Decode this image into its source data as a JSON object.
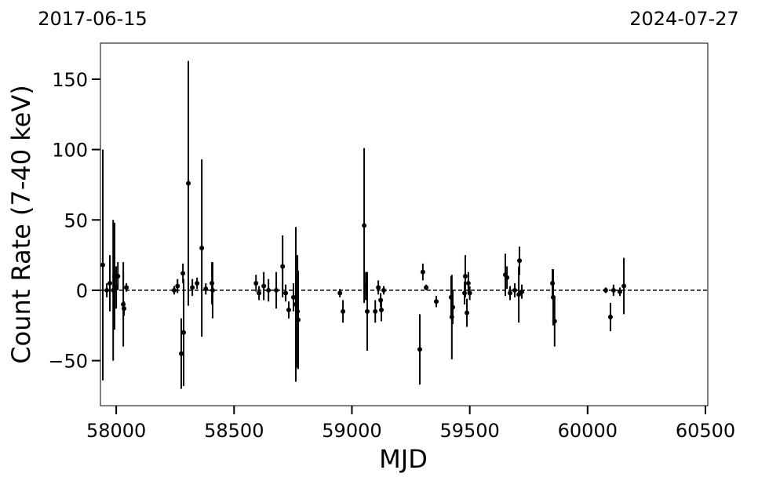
{
  "chart_data": {
    "type": "errorbar-scatter",
    "x_label": "MJD",
    "y_label": "Count Rate (7-40 keV)",
    "top_left_label": "2017-06-15",
    "top_right_label": "2024-07-27",
    "color": "#000000",
    "hline": 0,
    "xlim": [
      57933,
      60510
    ],
    "ylim": [
      -82,
      175.6
    ],
    "xticks": [
      58000,
      58500,
      59000,
      59500,
      60000,
      60500
    ],
    "yticks": [
      {
        "value": -50,
        "label": "−50"
      },
      0,
      50,
      100,
      150
    ],
    "x": [
      57943,
      57960,
      57973,
      57987,
      57993,
      58000,
      58007,
      58030,
      58033,
      58043,
      58246,
      58260,
      58276,
      58283,
      58286,
      58306,
      58323,
      58343,
      58363,
      58380,
      58406,
      58409,
      58593,
      58606,
      58626,
      58646,
      58679,
      58706,
      58719,
      58732,
      58752,
      58762,
      58769,
      58772,
      58949,
      58962,
      59052,
      59059,
      59065,
      59099,
      59112,
      59122,
      59125,
      59135,
      59288,
      59301,
      59315,
      59358,
      59421,
      59424,
      59428,
      59478,
      59481,
      59488,
      59494,
      59500,
      59651,
      59658,
      59671,
      59691,
      59708,
      59711,
      59721,
      59851,
      59854,
      59860,
      60077,
      60097,
      60110,
      60137,
      60154
    ],
    "values": [
      18,
      0,
      5,
      0,
      10,
      2,
      10,
      -10,
      -13,
      2,
      0,
      3,
      -45,
      12,
      -30,
      76,
      2,
      5,
      30,
      1,
      5,
      0,
      5,
      -2,
      3,
      0,
      0,
      17,
      -2,
      -14,
      -5,
      -10,
      -15,
      -21,
      -2,
      -15,
      46,
      3,
      -15,
      -15,
      2,
      -7,
      -14,
      0,
      -42,
      13,
      2,
      -8,
      -5,
      -19,
      -12,
      -2,
      10,
      -16,
      5,
      -2,
      11,
      9,
      -2,
      0,
      -3,
      21,
      -1,
      5,
      -5,
      -22,
      0,
      -19,
      0,
      -1,
      3
    ],
    "errors": [
      82,
      5,
      20,
      50,
      38,
      15,
      10,
      30,
      5,
      3,
      3,
      5,
      25,
      7,
      38,
      87,
      6,
      4,
      63,
      4,
      15,
      20,
      6,
      5,
      10,
      8,
      13,
      22,
      6,
      6,
      10,
      55,
      40,
      35,
      3,
      8,
      55,
      10,
      28,
      8,
      5,
      5,
      8,
      3,
      25,
      6,
      2,
      4,
      15,
      30,
      12,
      8,
      15,
      10,
      8,
      5,
      15,
      8,
      5,
      5,
      20,
      10,
      5,
      10,
      20,
      18,
      2,
      10,
      4,
      3,
      20
    ]
  }
}
